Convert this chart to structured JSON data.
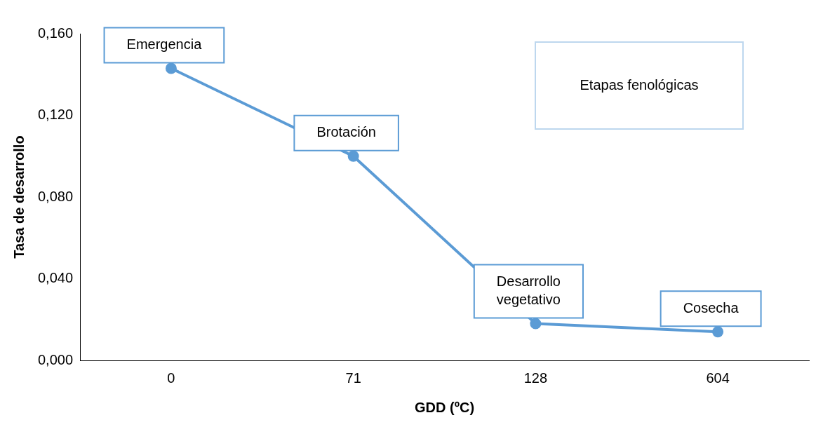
{
  "chart_data": {
    "type": "line",
    "xlabel": "GDD (ºC)",
    "ylabel": "Tasa de desarrollo",
    "categories": [
      "0",
      "71",
      "128",
      "604"
    ],
    "series": [
      {
        "color": "#5b9bd5",
        "values": [
          0.143,
          0.1,
          0.018,
          0.014
        ]
      }
    ],
    "ylim": [
      0,
      0.16
    ],
    "yticks": [
      {
        "value": 0,
        "label": "0,000"
      },
      {
        "value": 0.04,
        "label": "0,040"
      },
      {
        "value": 0.08,
        "label": "0,080"
      },
      {
        "value": 0.12,
        "label": "0,120"
      },
      {
        "value": 0.16,
        "label": "0,160"
      }
    ],
    "grid": false,
    "legend": false,
    "marker": "circle",
    "line_style": "solid",
    "annotations": [
      {
        "text": "Emergencia",
        "x": "0",
        "y": 0.143
      },
      {
        "text": "Brotación",
        "x": "71",
        "y": 0.1
      },
      {
        "text": "Desarrollo vegetativo",
        "x": "128",
        "y": 0.018
      },
      {
        "text": "Cosecha",
        "x": "604",
        "y": 0.014
      },
      "Etapas fenológicas"
    ]
  }
}
